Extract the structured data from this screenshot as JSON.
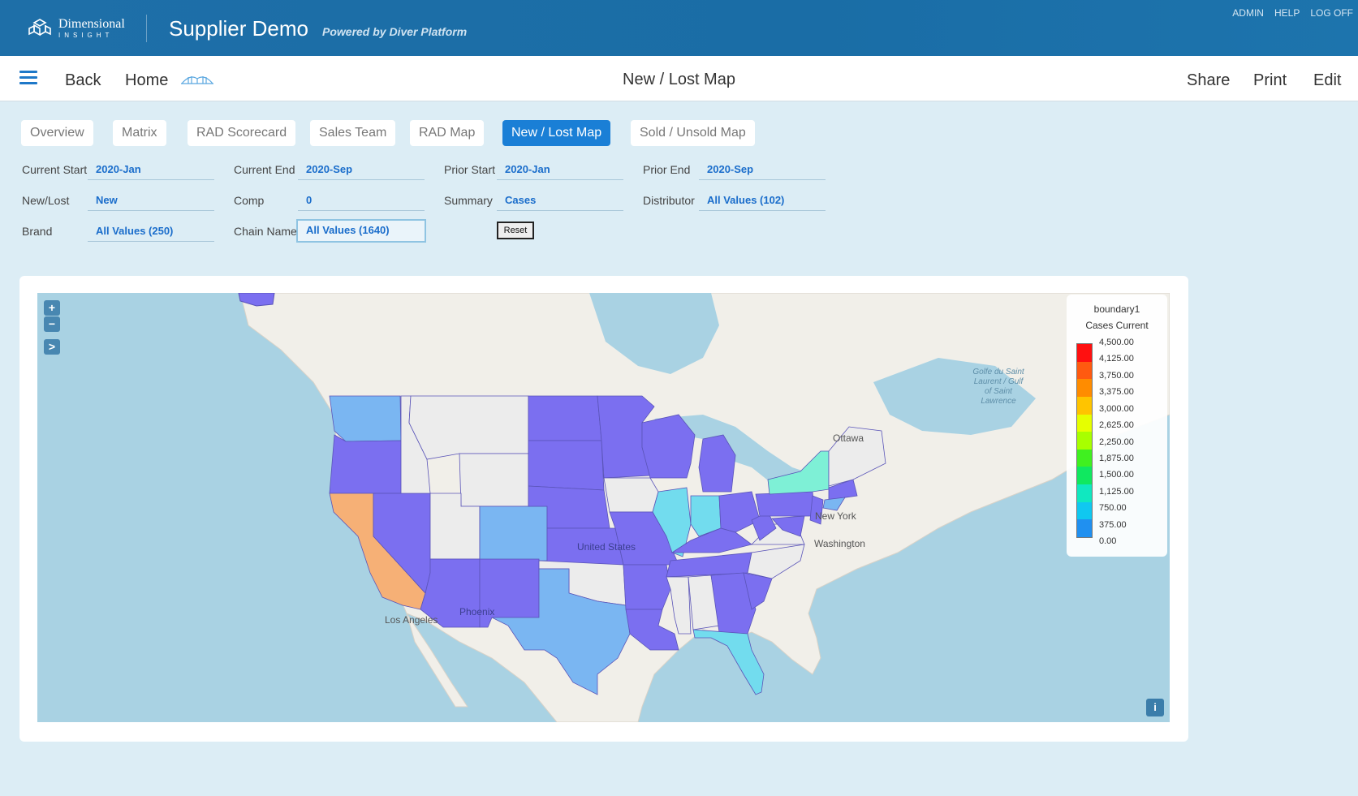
{
  "header": {
    "logo_line1": "Dimensional",
    "logo_line2": "INSIGHT",
    "title": "Supplier Demo",
    "subtitle": "Powered by Diver Platform",
    "links": [
      "ADMIN",
      "HELP",
      "LOG OFF"
    ]
  },
  "nav": {
    "back": "Back",
    "home": "Home",
    "page_title": "New / Lost Map",
    "share": "Share",
    "print": "Print",
    "edit": "Edit"
  },
  "tabs": [
    "Overview",
    "Matrix",
    "RAD Scorecard",
    "Sales Team",
    "RAD Map",
    "New / Lost Map",
    "Sold / Unsold Map"
  ],
  "active_tab": "New / Lost Map",
  "filters": {
    "current_start": {
      "label": "Current Start",
      "value": "2020-Jan"
    },
    "current_end": {
      "label": "Current End",
      "value": "2020-Sep"
    },
    "prior_start": {
      "label": "Prior Start",
      "value": "2020-Jan"
    },
    "prior_end": {
      "label": "Prior End",
      "value": "2020-Sep"
    },
    "new_lost": {
      "label": "New/Lost",
      "value": "New"
    },
    "comp": {
      "label": "Comp",
      "value": "0"
    },
    "summary": {
      "label": "Summary",
      "value": "Cases"
    },
    "distributor": {
      "label": "Distributor",
      "value": "All Values (102)"
    },
    "brand": {
      "label": "Brand",
      "value": "All Values (250)"
    },
    "chain_name": {
      "label": "Chain Name",
      "value": "All Values (1640)"
    },
    "reset_label": "Reset"
  },
  "map": {
    "zoom_in": "+",
    "zoom_out": "−",
    "expand": ">",
    "info": "i",
    "labels": {
      "ottawa": "Ottawa",
      "new_york": "New York",
      "washington": "Washington",
      "united_states": "United States",
      "phoenix": "Phoenix",
      "los_angeles": "Los Angeles",
      "gulf": "Golfe du Saint Laurent / Gulf of Saint Lawrence"
    },
    "legend": {
      "title1": "boundary1",
      "title2": "Cases Current",
      "ticks": [
        "4,500.00",
        "4,125.00",
        "3,750.00",
        "3,375.00",
        "3,000.00",
        "2,625.00",
        "2,250.00",
        "1,875.00",
        "1,500.00",
        "1,125.00",
        "750.00",
        "375.00",
        "0.00"
      ],
      "colors": [
        "#ff1010",
        "#ff5a10",
        "#ff8c00",
        "#ffc400",
        "#e6ff00",
        "#a8ff00",
        "#40f020",
        "#10e860",
        "#10e8c0",
        "#10c8f0",
        "#2090f0"
      ]
    },
    "state_colors": {
      "purple": "#7b6ff0",
      "light_blue": "#7ab6f2",
      "orange": "#f6b076",
      "cyan": "#72dcee",
      "aqua": "#7ef0d6",
      "grey": "#ececec"
    }
  }
}
